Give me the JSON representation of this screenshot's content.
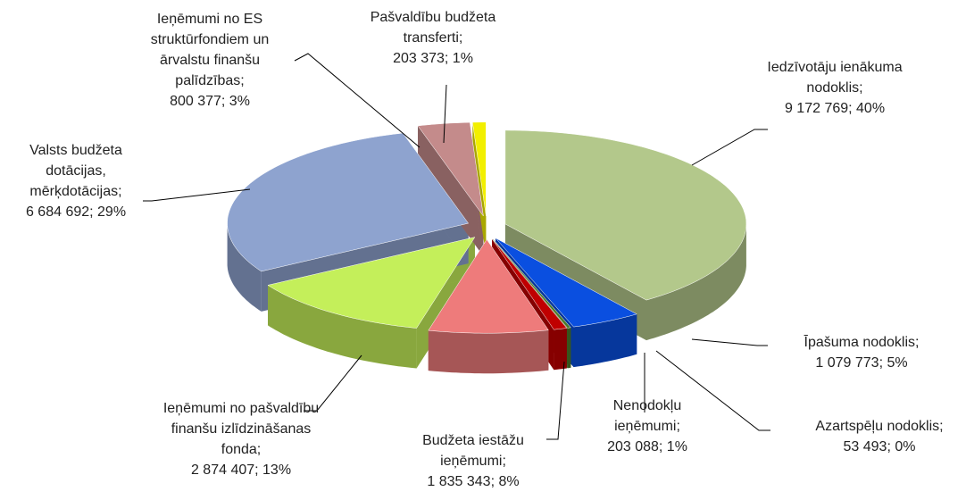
{
  "chart_data": {
    "type": "pie3d",
    "categories": [
      "Iedzīvotāju ienākuma nodoklis;",
      "Īpašuma nodoklis;",
      "Azartspēļu nodoklis;",
      "Nenodokļu ieņēmumi;",
      "Budžeta iestāžu ieņēmumi;",
      "Ieņēmumi no pašvaldību finanšu izlīdzināšanas fonda;",
      "Valsts budžeta dotācijas, mērķdotācijas;",
      "Ieņēmumi no ES struktūrfondiem un ārvalstu finanšu palīdzības;",
      "Pašvaldību budžeta transferti;"
    ],
    "values": [
      9172769,
      1079773,
      53493,
      203088,
      1835343,
      2874407,
      6684692,
      800377,
      203373
    ],
    "value_labels": [
      "9 172 769; 40%",
      "1 079 773; 5%",
      "53 493; 0%",
      "203 088; 1%",
      "1 835 343; 8%",
      "2 874 407; 13%",
      "6 684 692; 29%",
      "800 377; 3%",
      "203 373; 1%"
    ],
    "colors": [
      "#b3c88b",
      "#0a4fe0",
      "#4c7a2a",
      "#c00000",
      "#ee7b7b",
      "#c4ef5a",
      "#8ea3cf",
      "#c48b8b",
      "#f2ef00"
    ]
  }
}
